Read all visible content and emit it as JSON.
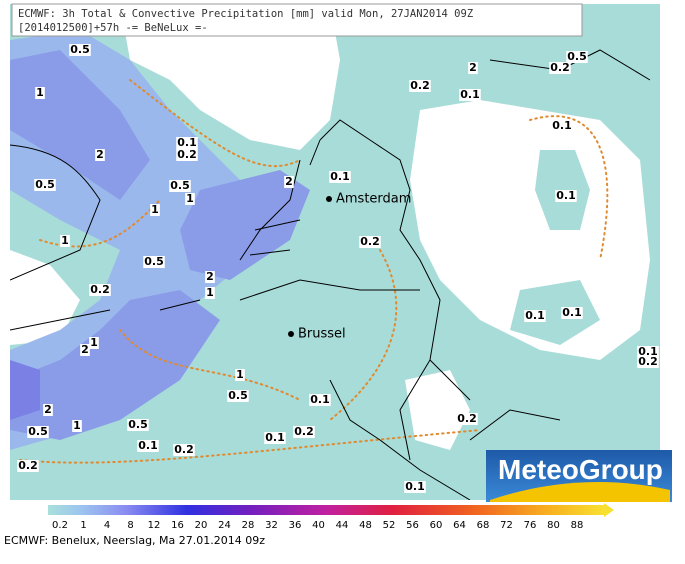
{
  "header": {
    "line1": "ECMWF: 3h Total & Convective Precipitation [mm] valid Mon, 27JAN2014 09Z",
    "line2": "[2014012500]+57h -= BeNeLux =-"
  },
  "map": {
    "cities": [
      "Amsterdam",
      "Brussel"
    ],
    "contour_labels": [
      "0.5",
      "1",
      "2",
      "0.1",
      "0.2",
      "0.5",
      "0.5",
      "1",
      "1",
      "2",
      "0.1",
      "0.2",
      "2",
      "0.1",
      "0.2",
      "0.5",
      "0.1",
      "0.1",
      "0.2",
      "1",
      "0.5",
      "0.2",
      "2",
      "1",
      "0.1",
      "0.1",
      "2",
      "1",
      "1",
      "0.5",
      "0.1",
      "0.1",
      "0.2",
      "2",
      "0.5",
      "1",
      "0.5",
      "0.1",
      "0.2",
      "0.1",
      "0.2",
      "0.2",
      "0.2",
      "0.1"
    ]
  },
  "logo": "MeteoGroup",
  "colorbar": {
    "labels": [
      0.2,
      1,
      4,
      8,
      12,
      16,
      20,
      24,
      28,
      32,
      36,
      40,
      44,
      48,
      52,
      56,
      60,
      64,
      68,
      72,
      76,
      80,
      88
    ]
  },
  "footer": "ECMWF: Benelux, Neerslag, Ma 27.01.2014 09z"
}
